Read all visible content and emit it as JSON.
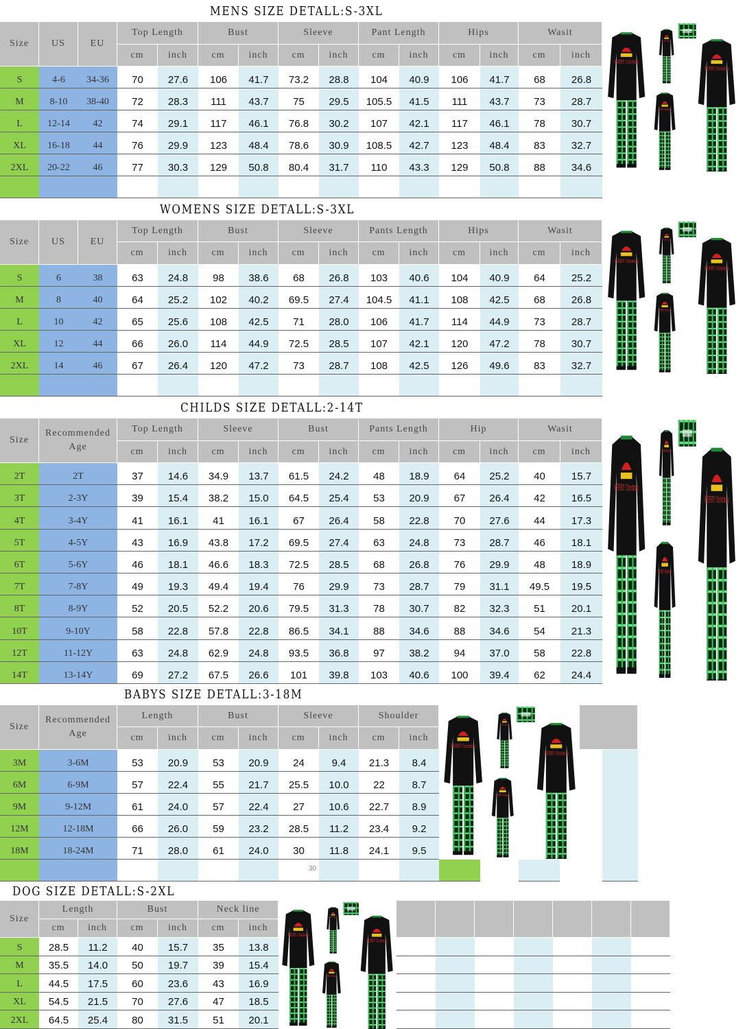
{
  "colors": {
    "header": "#c0c0c0",
    "size_col": "#92d050",
    "us_eu_col": "#8db4e2",
    "inch_col": "#daeef3"
  },
  "units": {
    "cm": "cm",
    "inch": "inch"
  },
  "tables": [
    {
      "id": "mens",
      "title": "MENS SIZE DETALL:S-3XL",
      "lead": [
        "Size",
        "US",
        "EU"
      ],
      "groups": [
        "Top Length",
        "Bust",
        "Sleeve",
        "Pant Length",
        "Hips",
        "Wasit"
      ],
      "rows": [
        [
          "S",
          "4-6",
          "34-36",
          "70",
          "27.6",
          "106",
          "41.7",
          "73.2",
          "28.8",
          "104",
          "40.9",
          "106",
          "41.7",
          "68",
          "26.8"
        ],
        [
          "M",
          "8-10",
          "38-40",
          "72",
          "28.3",
          "111",
          "43.7",
          "75",
          "29.5",
          "105.5",
          "41.5",
          "111",
          "43.7",
          "73",
          "28.7"
        ],
        [
          "L",
          "12-14",
          "42",
          "74",
          "29.1",
          "117",
          "46.1",
          "76.8",
          "30.2",
          "107",
          "42.1",
          "117",
          "46.1",
          "78",
          "30.7"
        ],
        [
          "XL",
          "16-18",
          "44",
          "76",
          "29.9",
          "123",
          "48.4",
          "78.6",
          "30.9",
          "108.5",
          "42.7",
          "123",
          "48.4",
          "83",
          "32.7"
        ],
        [
          "2XL",
          "20-22",
          "46",
          "77",
          "30.3",
          "129",
          "50.8",
          "80.4",
          "31.7",
          "110",
          "43.3",
          "129",
          "50.8",
          "88",
          "34.6"
        ]
      ]
    },
    {
      "id": "womens",
      "title": "WOMENS SIZE DETALL:S-3XL",
      "lead": [
        "Size",
        "US",
        "EU"
      ],
      "groups": [
        "Top Length",
        "Bust",
        "Sleeve",
        "Pants Length",
        "Hips",
        "Wasit"
      ],
      "rows": [
        [
          "S",
          "6",
          "38",
          "63",
          "24.8",
          "98",
          "38.6",
          "68",
          "26.8",
          "103",
          "40.6",
          "104",
          "40.9",
          "64",
          "25.2"
        ],
        [
          "M",
          "8",
          "40",
          "64",
          "25.2",
          "102",
          "40.2",
          "69.5",
          "27.4",
          "104.5",
          "41.1",
          "108",
          "42.5",
          "68",
          "26.8"
        ],
        [
          "L",
          "10",
          "42",
          "65",
          "25.6",
          "108",
          "42.5",
          "71",
          "28.0",
          "106",
          "41.7",
          "114",
          "44.9",
          "73",
          "28.7"
        ],
        [
          "XL",
          "12",
          "44",
          "66",
          "26.0",
          "114",
          "44.9",
          "72.5",
          "28.5",
          "107",
          "42.1",
          "120",
          "47.2",
          "78",
          "30.7"
        ],
        [
          "2XL",
          "14",
          "46",
          "67",
          "26.4",
          "120",
          "47.2",
          "73",
          "28.7",
          "108",
          "42.5",
          "126",
          "49.6",
          "83",
          "32.7"
        ]
      ]
    },
    {
      "id": "childs",
      "title": "CHILDS SIZE DETALL:2-14T",
      "lead": [
        "Size",
        "Recommended Age"
      ],
      "groups": [
        "Top Length",
        "Sleeve",
        "Bust",
        "Pants Length",
        "Hip",
        "Wasit"
      ],
      "rows": [
        [
          "2T",
          "2T",
          "37",
          "14.6",
          "34.9",
          "13.7",
          "61.5",
          "24.2",
          "48",
          "18.9",
          "64",
          "25.2",
          "40",
          "15.7"
        ],
        [
          "3T",
          "2-3Y",
          "39",
          "15.4",
          "38.2",
          "15.0",
          "64.5",
          "25.4",
          "53",
          "20.9",
          "67",
          "26.4",
          "42",
          "16.5"
        ],
        [
          "4T",
          "3-4Y",
          "41",
          "16.1",
          "41",
          "16.1",
          "67",
          "26.4",
          "58",
          "22.8",
          "70",
          "27.6",
          "44",
          "17.3"
        ],
        [
          "5T",
          "4-5Y",
          "43",
          "16.9",
          "43.8",
          "17.2",
          "69.5",
          "27.4",
          "63",
          "24.8",
          "73",
          "28.7",
          "46",
          "18.1"
        ],
        [
          "6T",
          "5-6Y",
          "46",
          "18.1",
          "46.6",
          "18.3",
          "72.5",
          "28.5",
          "68",
          "26.8",
          "76",
          "29.9",
          "48",
          "18.9"
        ],
        [
          "7T",
          "7-8Y",
          "49",
          "19.3",
          "49.4",
          "19.4",
          "76",
          "29.9",
          "73",
          "28.7",
          "79",
          "31.1",
          "49.5",
          "19.5"
        ],
        [
          "8T",
          "8-9Y",
          "52",
          "20.5",
          "52.2",
          "20.6",
          "79.5",
          "31.3",
          "78",
          "30.7",
          "82",
          "32.3",
          "51",
          "20.1"
        ],
        [
          "10T",
          "9-10Y",
          "58",
          "22.8",
          "57.8",
          "22.8",
          "86.5",
          "34.1",
          "88",
          "34.6",
          "88",
          "34.6",
          "54",
          "21.3"
        ],
        [
          "12T",
          "11-12Y",
          "63",
          "24.8",
          "62.9",
          "24.8",
          "93.5",
          "36.8",
          "97",
          "38.2",
          "94",
          "37.0",
          "58",
          "22.8"
        ],
        [
          "14T",
          "13-14Y",
          "69",
          "27.2",
          "67.5",
          "26.6",
          "101",
          "39.8",
          "103",
          "40.6",
          "100",
          "39.4",
          "62",
          "24.4"
        ]
      ]
    },
    {
      "id": "babys",
      "title": "BABYS SIZE DETALL:3-18M",
      "lead": [
        "Size",
        "Recommended Age"
      ],
      "groups": [
        "Length",
        "Bust",
        "Sleeve",
        "Shoulder"
      ],
      "rows": [
        [
          "3M",
          "3-6M",
          "53",
          "20.9",
          "53",
          "20.9",
          "24",
          "9.4",
          "21.3",
          "8.4"
        ],
        [
          "6M",
          "6-9M",
          "57",
          "22.4",
          "55",
          "21.7",
          "25.5",
          "10.0",
          "22",
          "8.7"
        ],
        [
          "9M",
          "9-12M",
          "61",
          "24.0",
          "57",
          "22.4",
          "27",
          "10.6",
          "22.7",
          "8.9"
        ],
        [
          "12M",
          "12-18M",
          "66",
          "26.0",
          "59",
          "23.2",
          "28.5",
          "11.2",
          "23.4",
          "9.2"
        ],
        [
          "18M",
          "18-24M",
          "71",
          "28.0",
          "61",
          "24.0",
          "30",
          "11.8",
          "24.1",
          "9.5"
        ]
      ],
      "note": "30"
    },
    {
      "id": "dog",
      "title": "DOG SIZE DETALL:S-2XL",
      "lead": [
        "Size"
      ],
      "groups": [
        "Length",
        "Bust",
        "Neck line"
      ],
      "rows": [
        [
          "S",
          "28.5",
          "11.2",
          "40",
          "15.7",
          "35",
          "13.8"
        ],
        [
          "M",
          "35.5",
          "14.0",
          "50",
          "19.7",
          "39",
          "15.4"
        ],
        [
          "L",
          "44.5",
          "17.5",
          "60",
          "23.6",
          "43",
          "16.9"
        ],
        [
          "XL",
          "54.5",
          "21.5",
          "70",
          "27.6",
          "47",
          "18.5"
        ],
        [
          "2XL",
          "64.5",
          "25.4",
          "80",
          "31.5",
          "51",
          "20.1"
        ]
      ]
    }
  ],
  "product_image": {
    "description_text": "MERRY Christmas",
    "icon": "family-pajama-set-image"
  }
}
